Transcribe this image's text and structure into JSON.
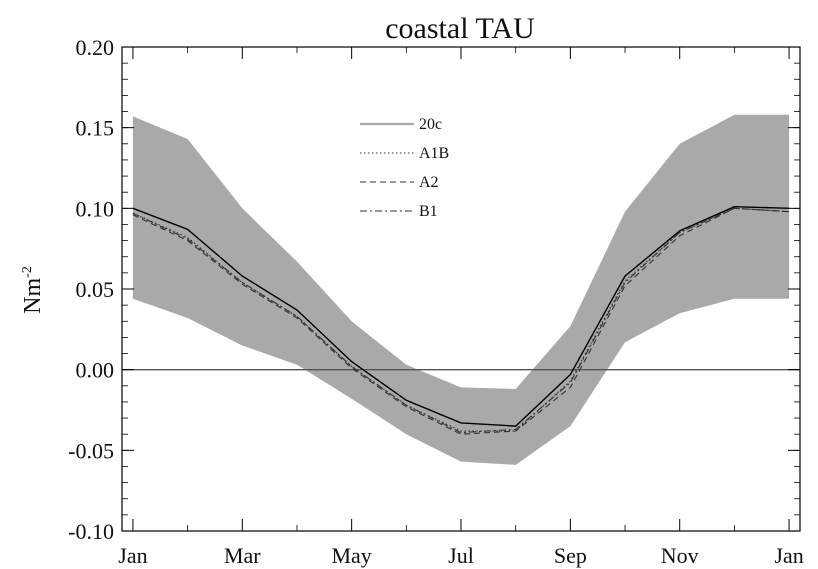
{
  "chart_data": {
    "type": "line",
    "title": "coastal TAU",
    "ylabel_base": "Nm",
    "ylabel_exp": "-2",
    "xlabel": "",
    "x_ticks": [
      "Jan",
      "Mar",
      "May",
      "Jul",
      "Sep",
      "Nov",
      "Jan"
    ],
    "x_tick_months": [
      0,
      2,
      4,
      6,
      8,
      10,
      12
    ],
    "y_ticks": [
      "-0.10",
      "-0.05",
      "0.00",
      "0.05",
      "0.10",
      "0.15",
      "0.20"
    ],
    "y_tick_values": [
      -0.1,
      -0.05,
      0.0,
      0.05,
      0.1,
      0.15,
      0.2
    ],
    "xlim": [
      -0.2,
      12.2
    ],
    "ylim": [
      -0.1,
      0.2
    ],
    "reference_line": 0.0,
    "x": [
      0,
      1,
      2,
      3,
      4,
      5,
      6,
      7,
      8,
      9,
      10,
      11,
      12
    ],
    "band": {
      "upper": [
        0.157,
        0.143,
        0.1,
        0.067,
        0.03,
        0.003,
        -0.011,
        -0.012,
        0.027,
        0.098,
        0.14,
        0.158,
        0.158
      ],
      "lower": [
        0.044,
        0.032,
        0.015,
        0.003,
        -0.018,
        -0.04,
        -0.057,
        -0.059,
        -0.035,
        0.017,
        0.035,
        0.044,
        0.044
      ],
      "color": "#a9a9a9"
    },
    "series": [
      {
        "name": "20c",
        "dash": "solid",
        "color": "#000000",
        "values": [
          0.1,
          0.087,
          0.058,
          0.037,
          0.005,
          -0.019,
          -0.033,
          -0.035,
          -0.003,
          0.058,
          0.086,
          0.101,
          0.1
        ]
      },
      {
        "name": "A1B",
        "dash": "dotted",
        "color": "#333333",
        "values": [
          0.097,
          0.082,
          0.054,
          0.033,
          0.002,
          -0.022,
          -0.038,
          -0.038,
          -0.007,
          0.055,
          0.085,
          0.1,
          0.098
        ]
      },
      {
        "name": "A2",
        "dash": "dashed",
        "color": "#333333",
        "values": [
          0.096,
          0.08,
          0.053,
          0.032,
          0.001,
          -0.023,
          -0.04,
          -0.038,
          -0.011,
          0.052,
          0.083,
          0.1,
          0.098
        ]
      },
      {
        "name": "B1",
        "dash": "dashdot",
        "color": "#333333",
        "values": [
          0.097,
          0.081,
          0.054,
          0.033,
          0.002,
          -0.022,
          -0.039,
          -0.037,
          -0.008,
          0.054,
          0.085,
          0.1,
          0.098
        ]
      }
    ],
    "legend": {
      "placement": "top-center",
      "entries": [
        "20c",
        "A1B",
        "A2",
        "B1"
      ]
    },
    "grid": false
  }
}
